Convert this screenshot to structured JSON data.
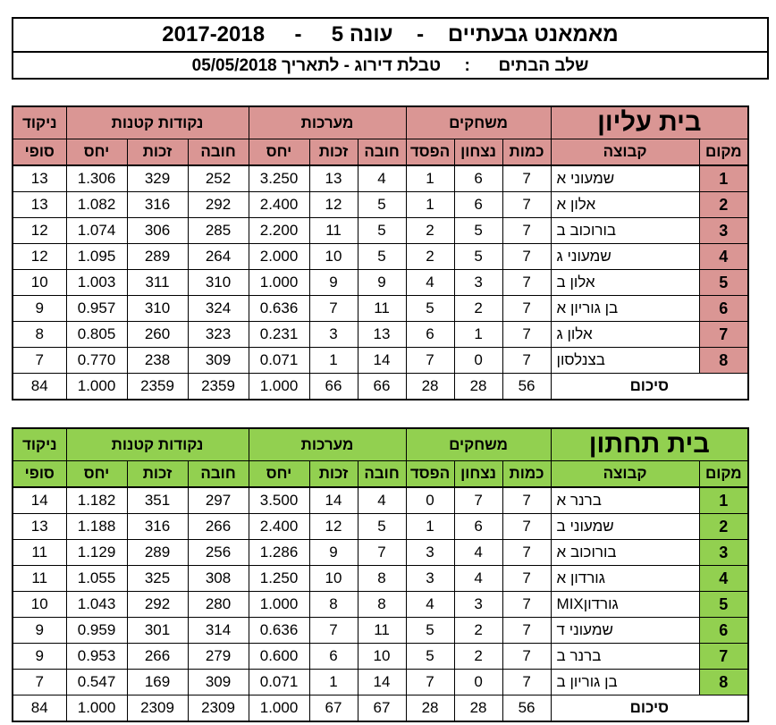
{
  "header": {
    "title_parts": [
      "מאמאנט גבעתיים",
      "-",
      "עונה 5",
      "-",
      "2017-2018"
    ],
    "subtitle_parts": [
      "שלב הבתים",
      ":",
      "טבלת דירוג - לתאריך 05/05/2018"
    ]
  },
  "columns": {
    "rank": "מקום",
    "team": "קבוצה",
    "games_group": "משחקים",
    "games": [
      "כמות",
      "נצחון",
      "הפסד"
    ],
    "sets_group": "מערכות",
    "sets": [
      "חובה",
      "זכות",
      "יחס"
    ],
    "points_group": "נקודות קטנות",
    "points": [
      "חובה",
      "זכות",
      "יחס"
    ],
    "final_top": "ניקוד",
    "final_bottom": "סופי",
    "total_label": "סיכום"
  },
  "groups": [
    {
      "name": "בית עליון",
      "color_header": "#da9694",
      "color_rank": "#da9694",
      "rows": [
        {
          "rank": "1",
          "team": "שמעוני א",
          "played": "7",
          "won": "6",
          "lost": "1",
          "sets_against": "4",
          "sets_for": "13",
          "sets_ratio": "3.250",
          "pts_against": "252",
          "pts_for": "329",
          "pts_ratio": "1.306",
          "final": "13"
        },
        {
          "rank": "2",
          "team": "אלון א",
          "played": "7",
          "won": "6",
          "lost": "1",
          "sets_against": "5",
          "sets_for": "12",
          "sets_ratio": "2.400",
          "pts_against": "292",
          "pts_for": "316",
          "pts_ratio": "1.082",
          "final": "13"
        },
        {
          "rank": "3",
          "team": "בורוכוב ב",
          "played": "7",
          "won": "5",
          "lost": "2",
          "sets_against": "5",
          "sets_for": "11",
          "sets_ratio": "2.200",
          "pts_against": "285",
          "pts_for": "306",
          "pts_ratio": "1.074",
          "final": "12"
        },
        {
          "rank": "4",
          "team": "שמעוני ג",
          "played": "7",
          "won": "5",
          "lost": "2",
          "sets_against": "5",
          "sets_for": "10",
          "sets_ratio": "2.000",
          "pts_against": "264",
          "pts_for": "289",
          "pts_ratio": "1.095",
          "final": "12"
        },
        {
          "rank": "5",
          "team": "אלון ב",
          "played": "7",
          "won": "3",
          "lost": "4",
          "sets_against": "9",
          "sets_for": "9",
          "sets_ratio": "1.000",
          "pts_against": "310",
          "pts_for": "311",
          "pts_ratio": "1.003",
          "final": "10"
        },
        {
          "rank": "6",
          "team": "בן גוריון א",
          "played": "7",
          "won": "2",
          "lost": "5",
          "sets_against": "11",
          "sets_for": "7",
          "sets_ratio": "0.636",
          "pts_against": "324",
          "pts_for": "310",
          "pts_ratio": "0.957",
          "final": "9"
        },
        {
          "rank": "7",
          "team": "אלון ג",
          "played": "7",
          "won": "1",
          "lost": "6",
          "sets_against": "13",
          "sets_for": "3",
          "sets_ratio": "0.231",
          "pts_against": "323",
          "pts_for": "260",
          "pts_ratio": "0.805",
          "final": "8"
        },
        {
          "rank": "8",
          "team": "בצנלסון",
          "played": "7",
          "won": "0",
          "lost": "7",
          "sets_against": "14",
          "sets_for": "1",
          "sets_ratio": "0.071",
          "pts_against": "309",
          "pts_for": "238",
          "pts_ratio": "0.770",
          "final": "7"
        }
      ],
      "total": {
        "played": "56",
        "won": "28",
        "lost": "28",
        "sets_against": "66",
        "sets_for": "66",
        "sets_ratio": "1.000",
        "pts_against": "2359",
        "pts_for": "2359",
        "pts_ratio": "1.000",
        "final": "84"
      }
    },
    {
      "name": "בית תחתון",
      "color_header": "#92d050",
      "color_rank": "#92d050",
      "rows": [
        {
          "rank": "1",
          "team": "ברנר א",
          "played": "7",
          "won": "7",
          "lost": "0",
          "sets_against": "4",
          "sets_for": "14",
          "sets_ratio": "3.500",
          "pts_against": "297",
          "pts_for": "351",
          "pts_ratio": "1.182",
          "final": "14"
        },
        {
          "rank": "2",
          "team": "שמעוני ב",
          "played": "7",
          "won": "6",
          "lost": "1",
          "sets_against": "5",
          "sets_for": "12",
          "sets_ratio": "2.400",
          "pts_against": "266",
          "pts_for": "316",
          "pts_ratio": "1.188",
          "final": "13"
        },
        {
          "rank": "3",
          "team": "בורוכוב א",
          "played": "7",
          "won": "4",
          "lost": "3",
          "sets_against": "7",
          "sets_for": "9",
          "sets_ratio": "1.286",
          "pts_against": "256",
          "pts_for": "289",
          "pts_ratio": "1.129",
          "final": "11"
        },
        {
          "rank": "4",
          "team": "גורדון א",
          "played": "7",
          "won": "4",
          "lost": "3",
          "sets_against": "8",
          "sets_for": "10",
          "sets_ratio": "1.250",
          "pts_against": "308",
          "pts_for": "325",
          "pts_ratio": "1.055",
          "final": "11"
        },
        {
          "rank": "5",
          "team": "גורדוןMIX",
          "played": "7",
          "won": "3",
          "lost": "4",
          "sets_against": "8",
          "sets_for": "8",
          "sets_ratio": "1.000",
          "pts_against": "280",
          "pts_for": "292",
          "pts_ratio": "1.043",
          "final": "10"
        },
        {
          "rank": "6",
          "team": "שמעוני ד",
          "played": "7",
          "won": "2",
          "lost": "5",
          "sets_against": "11",
          "sets_for": "7",
          "sets_ratio": "0.636",
          "pts_against": "314",
          "pts_for": "301",
          "pts_ratio": "0.959",
          "final": "9"
        },
        {
          "rank": "7",
          "team": "ברנר ב",
          "played": "7",
          "won": "2",
          "lost": "5",
          "sets_against": "10",
          "sets_for": "6",
          "sets_ratio": "0.600",
          "pts_against": "279",
          "pts_for": "266",
          "pts_ratio": "0.953",
          "final": "9"
        },
        {
          "rank": "8",
          "team": "בן גוריון ב",
          "played": "7",
          "won": "0",
          "lost": "7",
          "sets_against": "14",
          "sets_for": "1",
          "sets_ratio": "0.071",
          "pts_against": "309",
          "pts_for": "169",
          "pts_ratio": "0.547",
          "final": "7"
        }
      ],
      "total": {
        "played": "56",
        "won": "28",
        "lost": "28",
        "sets_against": "67",
        "sets_for": "67",
        "sets_ratio": "1.000",
        "pts_against": "2309",
        "pts_for": "2309",
        "pts_ratio": "1.000",
        "final": "84"
      }
    }
  ]
}
